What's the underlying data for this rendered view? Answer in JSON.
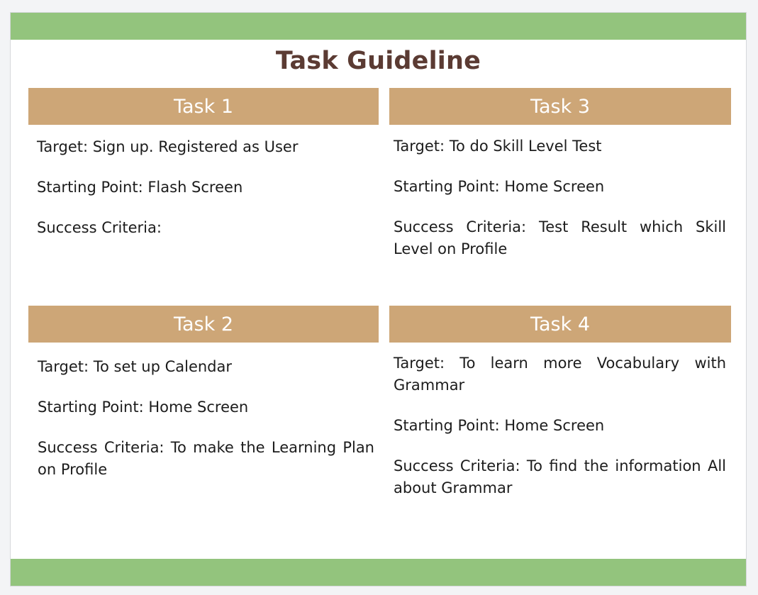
{
  "title": "Task Guideline",
  "colors": {
    "band": "#93c47d",
    "header": "#cda677",
    "title": "#5b3b33"
  },
  "tasks": [
    {
      "label": "Task 1",
      "target": "Target: Sign up. Registered as User",
      "starting_point": "Starting Point: Flash Screen",
      "success_criteria": "Success Criteria:"
    },
    {
      "label": "Task 2",
      "target": "Target: To set up Calendar",
      "starting_point": "Starting Point: Home Screen",
      "success_criteria": "Success Criteria: To make the Learning Plan on Profile"
    },
    {
      "label": "Task 3",
      "target": "Target: To do Skill Level Test",
      "starting_point": "Starting Point: Home Screen",
      "success_criteria": "Success Criteria: Test Result which Skill Level on Profile"
    },
    {
      "label": "Task 4",
      "target": "Target: To learn more Vocabulary with Grammar",
      "starting_point": "Starting Point: Home Screen",
      "success_criteria": "Success Criteria: To find the information All about Grammar"
    }
  ]
}
